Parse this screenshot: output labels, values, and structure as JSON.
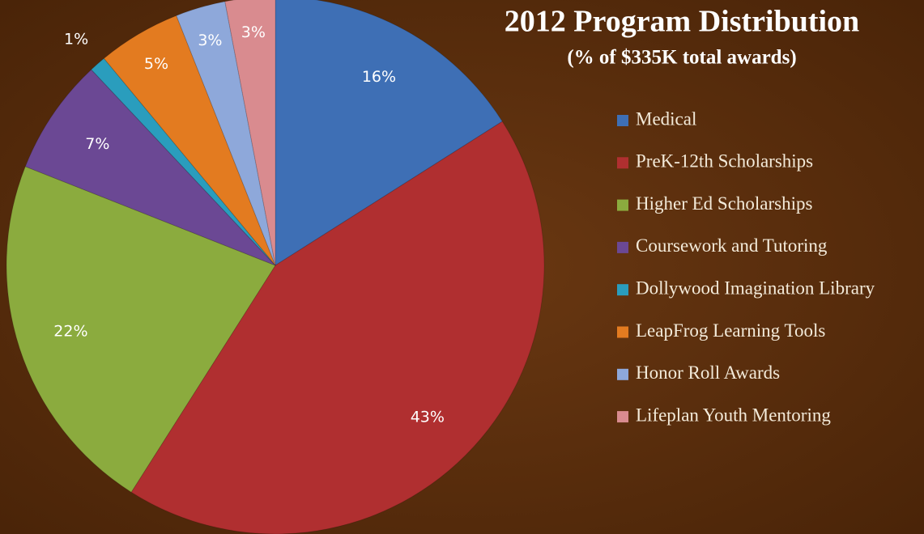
{
  "chart_data": {
    "type": "pie",
    "title": "2012 Program Distribution",
    "subtitle": "(% of $335K total awards)",
    "categories": [
      "Medical",
      "PreK-12th Scholarships",
      "Higher Ed Scholarships",
      "Coursework and Tutoring",
      "Dollywood Imagination Library",
      "LeapFrog Learning Tools",
      "Honor Roll Awards",
      "Lifeplan Youth Mentoring"
    ],
    "values": [
      16,
      43,
      22,
      7,
      1,
      5,
      3,
      3
    ],
    "value_labels": [
      "16%",
      "43%",
      "22%",
      "7%",
      "1%",
      "5%",
      "3%",
      "3%"
    ],
    "colors": [
      "#3e6fb5",
      "#b02f30",
      "#8bab3e",
      "#6b4894",
      "#2a9dbd",
      "#e37b20",
      "#8ea8da",
      "#d98b8f"
    ],
    "legend": "right"
  }
}
